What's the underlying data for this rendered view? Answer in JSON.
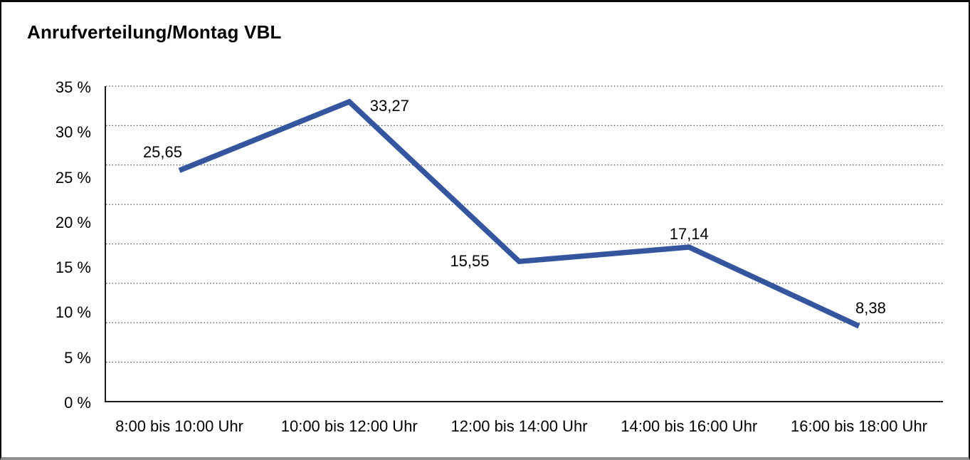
{
  "title": "Anrufverteilung/Montag VBL",
  "chart_data": {
    "type": "line",
    "title": "Anrufverteilung/Montag VBL",
    "categories": [
      "8:00 bis 10:00 Uhr",
      "10:00 bis 12:00 Uhr",
      "12:00 bis 14:00 Uhr",
      "14:00 bis 16:00 Uhr",
      "16:00 bis 18:00 Uhr"
    ],
    "values": [
      25.65,
      33.27,
      15.55,
      17.14,
      8.38
    ],
    "value_labels": [
      "25,65",
      "33,27",
      "15,55",
      "17,14",
      "8,38"
    ],
    "xlabel": "",
    "ylabel": "",
    "ylim": [
      0,
      35
    ],
    "y_ticks": [
      {
        "value": 35,
        "label": "35 %"
      },
      {
        "value": 30,
        "label": "30 %"
      },
      {
        "value": 25,
        "label": "25 %"
      },
      {
        "value": 20,
        "label": "20 %"
      },
      {
        "value": 15,
        "label": "15 %"
      },
      {
        "value": 10,
        "label": "10 %"
      },
      {
        "value": 5,
        "label": "5 %"
      },
      {
        "value": 0,
        "label": "0 %"
      }
    ],
    "grid": "horizontal-dotted",
    "gridline_divisions": 8,
    "legend": "none",
    "line_color": "#35569F",
    "axis_color": "#1c1c1c",
    "gridline_color": "#474747",
    "label_placements": [
      "above-left",
      "right",
      "left",
      "above",
      "above-right"
    ]
  }
}
